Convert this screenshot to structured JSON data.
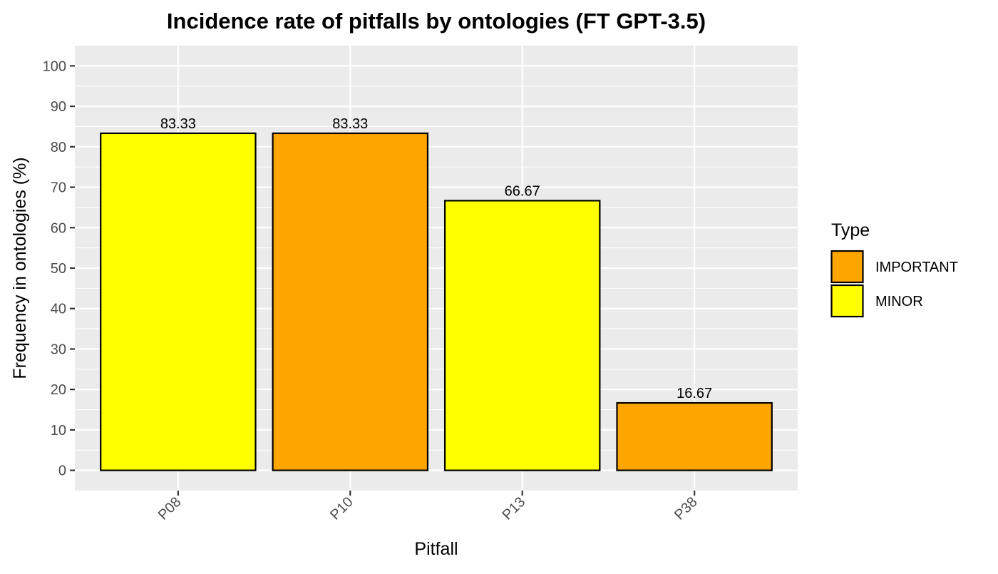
{
  "chart_data": {
    "type": "bar",
    "title": "Incidence rate of pitfalls by ontologies (FT GPT-3.5)",
    "xlabel": "Pitfall",
    "ylabel": "Frequency in ontologies (%)",
    "categories": [
      "P08",
      "P10",
      "P13",
      "P38"
    ],
    "values": [
      83.33,
      83.33,
      66.67,
      16.67
    ],
    "value_labels": [
      "83.33",
      "83.33",
      "66.67",
      "16.67"
    ],
    "types": [
      "MINOR",
      "IMPORTANT",
      "MINOR",
      "IMPORTANT"
    ],
    "ylim": [
      -5,
      105
    ],
    "yticks": [
      0,
      10,
      20,
      30,
      40,
      50,
      60,
      70,
      80,
      90,
      100
    ],
    "grid": true,
    "legend": {
      "title": "Type",
      "position": "right",
      "entries": [
        {
          "label": "IMPORTANT",
          "color": "#FFA500"
        },
        {
          "label": "MINOR",
          "color": "#FFFF00"
        }
      ]
    },
    "colors": {
      "IMPORTANT": "#FFA500",
      "MINOR": "#FFFF00",
      "panel_background": "#EBEBEB",
      "gridline": "#FFFFFF",
      "bar_border": "#000000"
    }
  }
}
